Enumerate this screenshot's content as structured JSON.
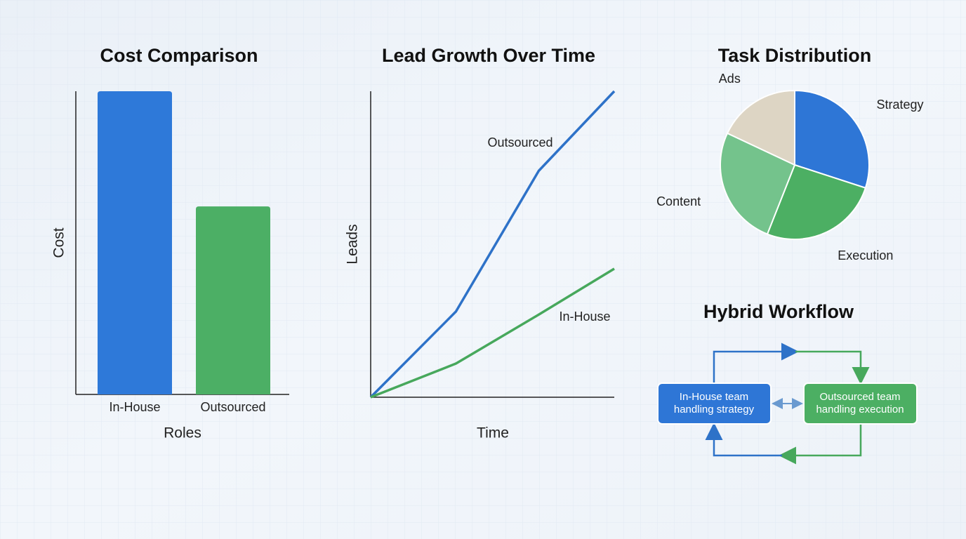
{
  "chart_data": [
    {
      "type": "bar",
      "title": "Cost Comparison",
      "x_label": "Roles",
      "y_label": "Cost",
      "categories": [
        "In-House",
        "Outsourced"
      ],
      "values": [
        100,
        62
      ],
      "colors": [
        "#2e79d9",
        "#4caf65"
      ],
      "ylim": [
        0,
        100
      ]
    },
    {
      "type": "line",
      "title": "Lead Growth Over Time",
      "x_label": "Time",
      "y_label": "Leads",
      "xlim": [
        0,
        10
      ],
      "ylim": [
        0,
        100
      ],
      "series": [
        {
          "name": "Outsourced",
          "color": "#2e72c8",
          "x": [
            0,
            3.5,
            6.9,
            10
          ],
          "values": [
            0,
            28,
            74,
            100
          ]
        },
        {
          "name": "In-House",
          "color": "#47a85c",
          "x": [
            0,
            3.5,
            6.9,
            10
          ],
          "values": [
            0,
            11,
            27,
            42
          ]
        }
      ]
    },
    {
      "type": "pie",
      "title": "Task Distribution",
      "categories": [
        "Strategy",
        "Execution",
        "Content",
        "Ads"
      ],
      "values": [
        30,
        26,
        26,
        18
      ],
      "colors": [
        "#2e76d6",
        "#4caf63",
        "#74c38c",
        "#ddd5c4"
      ]
    }
  ],
  "workflow": {
    "title": "Hybrid Workflow",
    "nodes": [
      {
        "lines": [
          "In-House team",
          "handling strategy"
        ]
      },
      {
        "lines": [
          "Outsourced team",
          "handling execution"
        ]
      }
    ]
  }
}
